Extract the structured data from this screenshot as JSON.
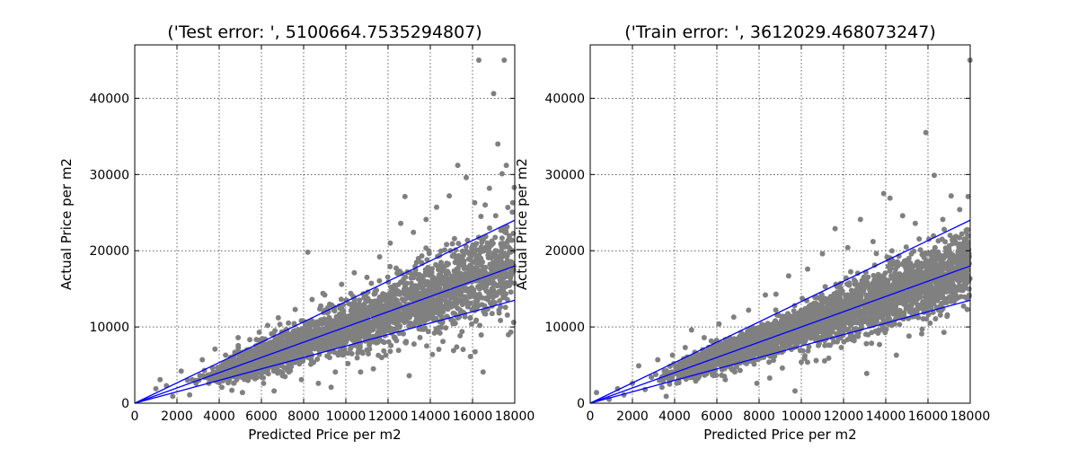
{
  "chart_data": [
    {
      "type": "scatter",
      "title": "('Test error: ', 5100664.7535294807)",
      "xlabel": "Predicted Price per m2",
      "ylabel": "Actual Price per m2",
      "xlim": [
        0,
        18000
      ],
      "ylim": [
        0,
        47000
      ],
      "xticks": [
        0,
        2000,
        4000,
        6000,
        8000,
        10000,
        12000,
        14000,
        16000,
        18000
      ],
      "yticks": [
        0,
        10000,
        20000,
        30000,
        40000
      ],
      "grid": true,
      "marker_color": "#808080",
      "line_color": "#0000ff",
      "reference_lines": [
        {
          "x": [
            0,
            18000
          ],
          "y": [
            0,
            24000
          ]
        },
        {
          "x": [
            0,
            18000
          ],
          "y": [
            0,
            18000
          ]
        },
        {
          "x": [
            0,
            18000
          ],
          "y": [
            0,
            13500
          ]
        }
      ],
      "points": [
        [
          1000,
          1900
        ],
        [
          1200,
          3100
        ],
        [
          1500,
          2300
        ],
        [
          1800,
          900
        ],
        [
          2200,
          4200
        ],
        [
          2500,
          3000
        ],
        [
          2600,
          1100
        ],
        [
          2900,
          2600
        ],
        [
          3200,
          5700
        ],
        [
          3300,
          4300
        ],
        [
          3600,
          3200
        ],
        [
          3800,
          7100
        ],
        [
          4000,
          2700
        ],
        [
          4300,
          6300
        ],
        [
          4600,
          1700
        ],
        [
          4900,
          8600
        ],
        [
          5100,
          1400
        ],
        [
          5400,
          7000
        ],
        [
          5700,
          3200
        ],
        [
          5900,
          9300
        ],
        [
          6100,
          2600
        ],
        [
          6300,
          10200
        ],
        [
          6600,
          1600
        ],
        [
          6800,
          11200
        ],
        [
          7000,
          3600
        ],
        [
          7300,
          4100
        ],
        [
          7600,
          12300
        ],
        [
          7900,
          3100
        ],
        [
          8200,
          19800
        ],
        [
          8400,
          13600
        ],
        [
          8700,
          2600
        ],
        [
          9000,
          14200
        ],
        [
          9300,
          2100
        ],
        [
          9500,
          4100
        ],
        [
          9800,
          15600
        ],
        [
          10100,
          5200
        ],
        [
          10400,
          17100
        ],
        [
          10700,
          4100
        ],
        [
          11000,
          16500
        ],
        [
          11300,
          4500
        ],
        [
          11600,
          19200
        ],
        [
          11900,
          6300
        ],
        [
          12100,
          21000
        ],
        [
          12400,
          8200
        ],
        [
          12600,
          23600
        ],
        [
          12800,
          27100
        ],
        [
          13000,
          3600
        ],
        [
          13200,
          22400
        ],
        [
          13500,
          10300
        ],
        [
          13800,
          24100
        ],
        [
          14100,
          6400
        ],
        [
          14300,
          25700
        ],
        [
          14600,
          8100
        ],
        [
          14900,
          27200
        ],
        [
          15100,
          6900
        ],
        [
          15300,
          31200
        ],
        [
          15500,
          9400
        ],
        [
          15700,
          29600
        ],
        [
          15900,
          11200
        ],
        [
          16100,
          26300
        ],
        [
          16300,
          45000
        ],
        [
          16400,
          24500
        ],
        [
          16500,
          4100
        ],
        [
          16600,
          26000
        ],
        [
          16800,
          28200
        ],
        [
          17000,
          40600
        ],
        [
          17100,
          24600
        ],
        [
          17200,
          34000
        ],
        [
          17300,
          16200
        ],
        [
          17400,
          30100
        ],
        [
          17500,
          45000
        ],
        [
          17600,
          31200
        ],
        [
          17700,
          20500
        ],
        [
          17900,
          26300
        ],
        [
          17950,
          10600
        ],
        [
          17980,
          28300
        ]
      ]
    },
    {
      "type": "scatter",
      "title": "('Train error: ', 3612029.468073247)",
      "xlabel": "Predicted Price per m2",
      "ylabel": "Actual Price per m2",
      "xlim": [
        0,
        18000
      ],
      "ylim": [
        0,
        47000
      ],
      "xticks": [
        0,
        2000,
        4000,
        6000,
        8000,
        10000,
        12000,
        14000,
        16000,
        18000
      ],
      "yticks": [
        0,
        10000,
        20000,
        30000,
        40000
      ],
      "grid": true,
      "marker_color": "#808080",
      "line_color": "#0000ff",
      "reference_lines": [
        {
          "x": [
            0,
            18000
          ],
          "y": [
            0,
            24000
          ]
        },
        {
          "x": [
            0,
            18000
          ],
          "y": [
            0,
            18000
          ]
        },
        {
          "x": [
            0,
            18000
          ],
          "y": [
            0,
            13500
          ]
        }
      ],
      "points": [
        [
          300,
          1400
        ],
        [
          900,
          500
        ],
        [
          1300,
          1900
        ],
        [
          1600,
          1100
        ],
        [
          2000,
          2600
        ],
        [
          2300,
          4900
        ],
        [
          2600,
          1800
        ],
        [
          2900,
          3400
        ],
        [
          3200,
          5700
        ],
        [
          3400,
          2100
        ],
        [
          3600,
          900
        ],
        [
          3900,
          6300
        ],
        [
          4200,
          2700
        ],
        [
          4500,
          7300
        ],
        [
          4800,
          9600
        ],
        [
          5000,
          2900
        ],
        [
          5400,
          8600
        ],
        [
          5800,
          3700
        ],
        [
          6100,
          10400
        ],
        [
          6400,
          3100
        ],
        [
          6800,
          11300
        ],
        [
          7100,
          4300
        ],
        [
          7500,
          12200
        ],
        [
          7900,
          2600
        ],
        [
          8300,
          14200
        ],
        [
          8500,
          3300
        ],
        [
          8800,
          14300
        ],
        [
          9100,
          4600
        ],
        [
          9400,
          16700
        ],
        [
          9700,
          1600
        ],
        [
          10000,
          5400
        ],
        [
          10300,
          17600
        ],
        [
          10700,
          5600
        ],
        [
          11000,
          19600
        ],
        [
          11300,
          5900
        ],
        [
          11600,
          22900
        ],
        [
          11900,
          7300
        ],
        [
          12200,
          20400
        ],
        [
          12500,
          8200
        ],
        [
          12800,
          24100
        ],
        [
          13100,
          3900
        ],
        [
          13400,
          21200
        ],
        [
          13700,
          7700
        ],
        [
          13900,
          27500
        ],
        [
          14200,
          26900
        ],
        [
          14500,
          6300
        ],
        [
          14800,
          24600
        ],
        [
          15100,
          8800
        ],
        [
          15400,
          23600
        ],
        [
          15700,
          9100
        ],
        [
          15900,
          35500
        ],
        [
          16100,
          10500
        ],
        [
          16300,
          29900
        ],
        [
          16500,
          12200
        ],
        [
          16700,
          24100
        ],
        [
          16900,
          11400
        ],
        [
          17100,
          27200
        ],
        [
          17300,
          13600
        ],
        [
          17500,
          25400
        ],
        [
          17700,
          16600
        ],
        [
          17900,
          27100
        ],
        [
          17990,
          45000
        ],
        [
          17950,
          14200
        ]
      ]
    }
  ]
}
